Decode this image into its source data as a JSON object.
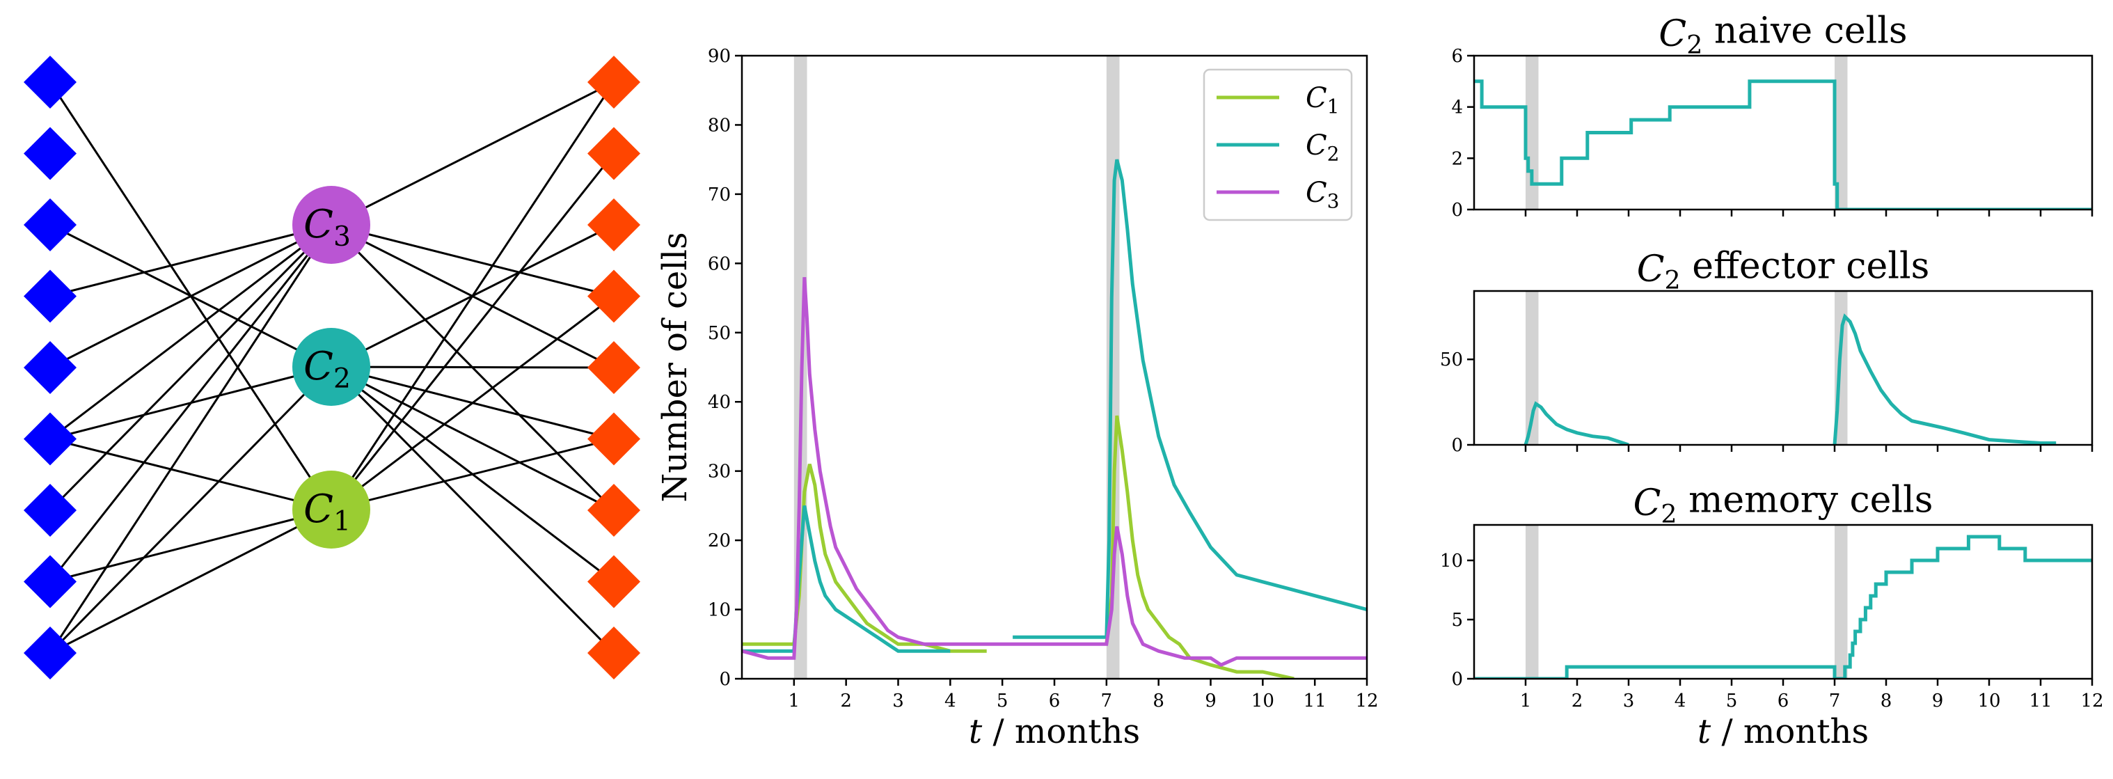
{
  "colors": {
    "C1": "#9acd32",
    "C2": "#20b2aa",
    "C3": "#ba55d3",
    "left_nodes": "#0000ff",
    "right_nodes": "#ff4500",
    "shade": "#d3d3d3"
  },
  "network": {
    "left_node_count": 9,
    "right_node_count": 9,
    "hubs": [
      {
        "id": "C3",
        "label": "C",
        "sub": "3"
      },
      {
        "id": "C2",
        "label": "C",
        "sub": "2"
      },
      {
        "id": "C1",
        "label": "C",
        "sub": "1"
      }
    ],
    "edges_left": [
      [
        0,
        "C1"
      ],
      [
        2,
        "C2"
      ],
      [
        3,
        "C3"
      ],
      [
        4,
        "C3"
      ],
      [
        5,
        "C3"
      ],
      [
        5,
        "C2"
      ],
      [
        5,
        "C1"
      ],
      [
        6,
        "C3"
      ],
      [
        7,
        "C3"
      ],
      [
        7,
        "C1"
      ],
      [
        8,
        "C3"
      ],
      [
        8,
        "C2"
      ],
      [
        8,
        "C1"
      ]
    ],
    "edges_right": [
      [
        0,
        "C3"
      ],
      [
        0,
        "C1"
      ],
      [
        1,
        "C1"
      ],
      [
        2,
        "C2"
      ],
      [
        3,
        "C3"
      ],
      [
        3,
        "C1"
      ],
      [
        4,
        "C3"
      ],
      [
        4,
        "C2"
      ],
      [
        5,
        "C2"
      ],
      [
        5,
        "C1"
      ],
      [
        6,
        "C3"
      ],
      [
        6,
        "C2"
      ],
      [
        7,
        "C2"
      ],
      [
        8,
        "C2"
      ]
    ]
  },
  "chart_data": [
    {
      "type": "line",
      "id": "main",
      "title": "",
      "xlabel": "t / months",
      "ylabel": "Number of cells",
      "xlim": [
        0,
        12
      ],
      "ylim": [
        0,
        90
      ],
      "xticks": [
        1,
        2,
        3,
        4,
        5,
        6,
        7,
        8,
        9,
        10,
        11,
        12
      ],
      "yticks": [
        0,
        10,
        20,
        30,
        40,
        50,
        60,
        70,
        80,
        90
      ],
      "shaded_intervals": [
        [
          1,
          1.25
        ],
        [
          7,
          7.25
        ]
      ],
      "legend": {
        "placement": "top-right",
        "entries": [
          {
            "label": "C",
            "sub": "1",
            "series": "C1"
          },
          {
            "label": "C",
            "sub": "2",
            "series": "C2"
          },
          {
            "label": "C",
            "sub": "3",
            "series": "C3"
          }
        ]
      },
      "series": [
        {
          "name": "C1",
          "x": [
            0,
            1.0,
            1.1,
            1.2,
            1.3,
            1.4,
            1.5,
            1.6,
            1.8,
            2.0,
            2.2,
            2.4,
            2.6,
            2.8,
            3.0,
            3.5,
            4.0,
            4.7,
            5.0,
            6.0,
            7.0,
            7.1,
            7.15,
            7.2,
            7.3,
            7.4,
            7.5,
            7.6,
            7.7,
            7.8,
            8.0,
            8.2,
            8.4,
            8.5,
            8.6,
            9.0,
            9.5,
            10.0,
            10.6
          ],
          "y": [
            5,
            5,
            12,
            27,
            31,
            28,
            22,
            18,
            14,
            12,
            10,
            8,
            7,
            6,
            5,
            5,
            4,
            4,
            null,
            null,
            5,
            12,
            30,
            38,
            33,
            27,
            20,
            15,
            12,
            10,
            8,
            6,
            5,
            4,
            3,
            2,
            1,
            1,
            0
          ]
        },
        {
          "name": "C2",
          "x": [
            0,
            1.0,
            1.05,
            1.15,
            1.2,
            1.3,
            1.4,
            1.5,
            1.6,
            1.8,
            2.0,
            2.2,
            2.4,
            2.6,
            2.8,
            3.0,
            3.5,
            4.0,
            4.5,
            5.2,
            5.5,
            6.0,
            7.0,
            7.05,
            7.1,
            7.15,
            7.2,
            7.3,
            7.4,
            7.5,
            7.7,
            8.0,
            8.3,
            8.6,
            9.0,
            9.5,
            10.0,
            10.5,
            11.0,
            11.5,
            12.0
          ],
          "y": [
            4,
            4,
            10,
            20,
            25,
            21,
            17,
            14,
            12,
            10,
            9,
            8,
            7,
            6,
            5,
            4,
            4,
            4,
            null,
            6,
            6,
            6,
            6,
            20,
            55,
            72,
            75,
            72,
            65,
            57,
            46,
            35,
            28,
            24,
            19,
            15,
            14,
            13,
            12,
            11,
            10
          ]
        },
        {
          "name": "C3",
          "x": [
            0,
            0.5,
            1.0,
            1.05,
            1.1,
            1.15,
            1.2,
            1.25,
            1.3,
            1.4,
            1.5,
            1.6,
            1.7,
            1.8,
            2.0,
            2.2,
            2.4,
            2.6,
            2.8,
            3.0,
            3.5,
            4.0,
            5.0,
            6.0,
            7.0,
            7.1,
            7.15,
            7.2,
            7.3,
            7.4,
            7.5,
            7.7,
            8.0,
            8.5,
            9.0,
            9.2,
            9.5,
            10.0,
            11.0,
            12.0
          ],
          "y": [
            4,
            3,
            3,
            10,
            25,
            45,
            58,
            52,
            44,
            36,
            30,
            26,
            22,
            19,
            16,
            13,
            11,
            9,
            7,
            6,
            5,
            5,
            5,
            5,
            5,
            10,
            18,
            22,
            18,
            12,
            8,
            5,
            4,
            3,
            3,
            2,
            3,
            3,
            3,
            3
          ]
        }
      ]
    },
    {
      "type": "line",
      "id": "naive",
      "title": "C2 naive cells",
      "title_parts": {
        "label": "C",
        "sub": "2",
        "rest": "naive cells"
      },
      "xlim": [
        0,
        12
      ],
      "ylim": [
        0,
        6
      ],
      "yticks": [
        0,
        2,
        4,
        6
      ],
      "shaded_intervals": [
        [
          1,
          1.25
        ],
        [
          7,
          7.25
        ]
      ],
      "series": [
        {
          "name": "C2",
          "x": [
            0,
            0.15,
            0.15,
            1.0,
            1.0,
            1.05,
            1.05,
            1.12,
            1.12,
            1.7,
            1.7,
            2.2,
            2.2,
            3.05,
            3.05,
            3.8,
            3.8,
            5.35,
            5.35,
            7.0,
            7.0,
            7.05,
            7.05,
            12.0
          ],
          "y": [
            5,
            5,
            4,
            4,
            2,
            2,
            1.5,
            1.5,
            1,
            1,
            2,
            2,
            3,
            3,
            3.5,
            3.5,
            4,
            4,
            5,
            5,
            1,
            1,
            0,
            0
          ]
        }
      ]
    },
    {
      "type": "line",
      "id": "effector",
      "title": "C2 effector cells",
      "title_parts": {
        "label": "C",
        "sub": "2",
        "rest": "effector cells"
      },
      "xlim": [
        0,
        12
      ],
      "ylim": [
        0,
        90
      ],
      "yticks": [
        0,
        50
      ],
      "shaded_intervals": [
        [
          1,
          1.25
        ],
        [
          7,
          7.25
        ]
      ],
      "series": [
        {
          "name": "C2",
          "x": [
            1.0,
            1.05,
            1.1,
            1.15,
            1.2,
            1.3,
            1.4,
            1.5,
            1.6,
            1.8,
            2.0,
            2.3,
            2.6,
            2.8,
            3.0,
            null,
            7.0,
            7.05,
            7.1,
            7.15,
            7.2,
            7.3,
            7.4,
            7.5,
            7.7,
            7.9,
            8.1,
            8.3,
            8.5,
            8.8,
            9.1,
            9.5,
            10.0,
            10.5,
            11.0,
            11.3
          ],
          "y": [
            0,
            5,
            12,
            20,
            24,
            22,
            18,
            15,
            12,
            9,
            7,
            5,
            4,
            2,
            0,
            null,
            0,
            20,
            50,
            70,
            75,
            72,
            65,
            55,
            43,
            32,
            24,
            18,
            14,
            12,
            10,
            7,
            3,
            2,
            1,
            1
          ]
        }
      ]
    },
    {
      "type": "line",
      "id": "memory",
      "title": "C2 memory cells",
      "title_parts": {
        "label": "C",
        "sub": "2",
        "rest": "memory cells"
      },
      "xlabel": "t / months",
      "xlim": [
        0,
        12
      ],
      "ylim": [
        0,
        13
      ],
      "xticks": [
        1,
        2,
        3,
        4,
        5,
        6,
        7,
        8,
        9,
        10,
        11,
        12
      ],
      "yticks": [
        0,
        5,
        10
      ],
      "shaded_intervals": [
        [
          1,
          1.25
        ],
        [
          7,
          7.25
        ]
      ],
      "series": [
        {
          "name": "C2",
          "x": [
            0,
            1.8,
            1.8,
            7.0,
            7.0,
            7.2,
            7.2,
            7.3,
            7.3,
            7.35,
            7.35,
            7.4,
            7.4,
            7.5,
            7.5,
            7.6,
            7.6,
            7.7,
            7.7,
            7.8,
            7.8,
            8.0,
            8.0,
            8.5,
            8.5,
            9.0,
            9.0,
            9.6,
            9.6,
            10.2,
            10.2,
            10.7,
            10.7,
            11.0,
            11.0,
            12.0
          ],
          "y": [
            0,
            0,
            1,
            1,
            0,
            0,
            1,
            1,
            2,
            2,
            3,
            3,
            4,
            4,
            5,
            5,
            6,
            6,
            7,
            7,
            8,
            8,
            9,
            9,
            10,
            10,
            11,
            11,
            12,
            12,
            11,
            11,
            10,
            10,
            10,
            10
          ]
        }
      ]
    }
  ]
}
